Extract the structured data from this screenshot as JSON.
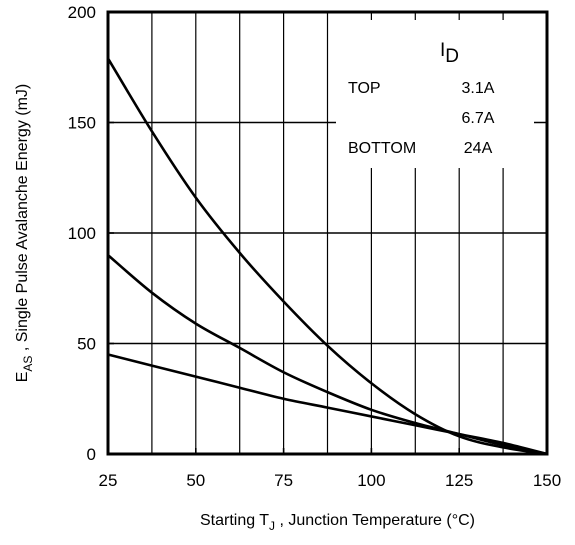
{
  "chart_data": {
    "type": "line",
    "title": "",
    "xlabel": {
      "prefix": "Starting T",
      "sub": "J",
      "suffix": " , Junction Temperature (°C)"
    },
    "ylabel": {
      "prefix": "E",
      "sub": "AS",
      "suffix": " , Single Pulse Avalanche Energy (mJ)"
    },
    "xlim": [
      25,
      150
    ],
    "ylim": [
      0,
      200
    ],
    "xticks": [
      25,
      50,
      75,
      100,
      125,
      150
    ],
    "yticks": [
      0,
      50,
      100,
      150,
      200
    ],
    "x_minor_grid_step": 12.5,
    "grid": true,
    "legend": {
      "placement": "top-right",
      "header_prefix": "I",
      "header_sub": "D",
      "rows": [
        {
          "label": "TOP",
          "value": "3.1A"
        },
        {
          "label": "",
          "value": "6.7A"
        },
        {
          "label": "BOTTOM",
          "value": "24A"
        }
      ]
    },
    "series": [
      {
        "x": [
          25,
          37.5,
          50,
          62.5,
          75,
          87.5,
          100,
          112.5,
          125,
          137.5,
          150
        ],
        "y": [
          179,
          146,
          116,
          91,
          69,
          49,
          32,
          18,
          8,
          3,
          0
        ]
      },
      {
        "x": [
          25,
          37.5,
          50,
          62.5,
          75,
          87.5,
          100,
          112.5,
          125,
          137.5,
          150
        ],
        "y": [
          90,
          73,
          59,
          48,
          37,
          28,
          20,
          14,
          9,
          4,
          0
        ]
      },
      {
        "x": [
          25,
          37.5,
          50,
          62.5,
          75,
          87.5,
          100,
          112.5,
          125,
          137.5,
          150
        ],
        "y": [
          45,
          40,
          35,
          30,
          25,
          21,
          17,
          13,
          9,
          5,
          0
        ]
      }
    ]
  }
}
